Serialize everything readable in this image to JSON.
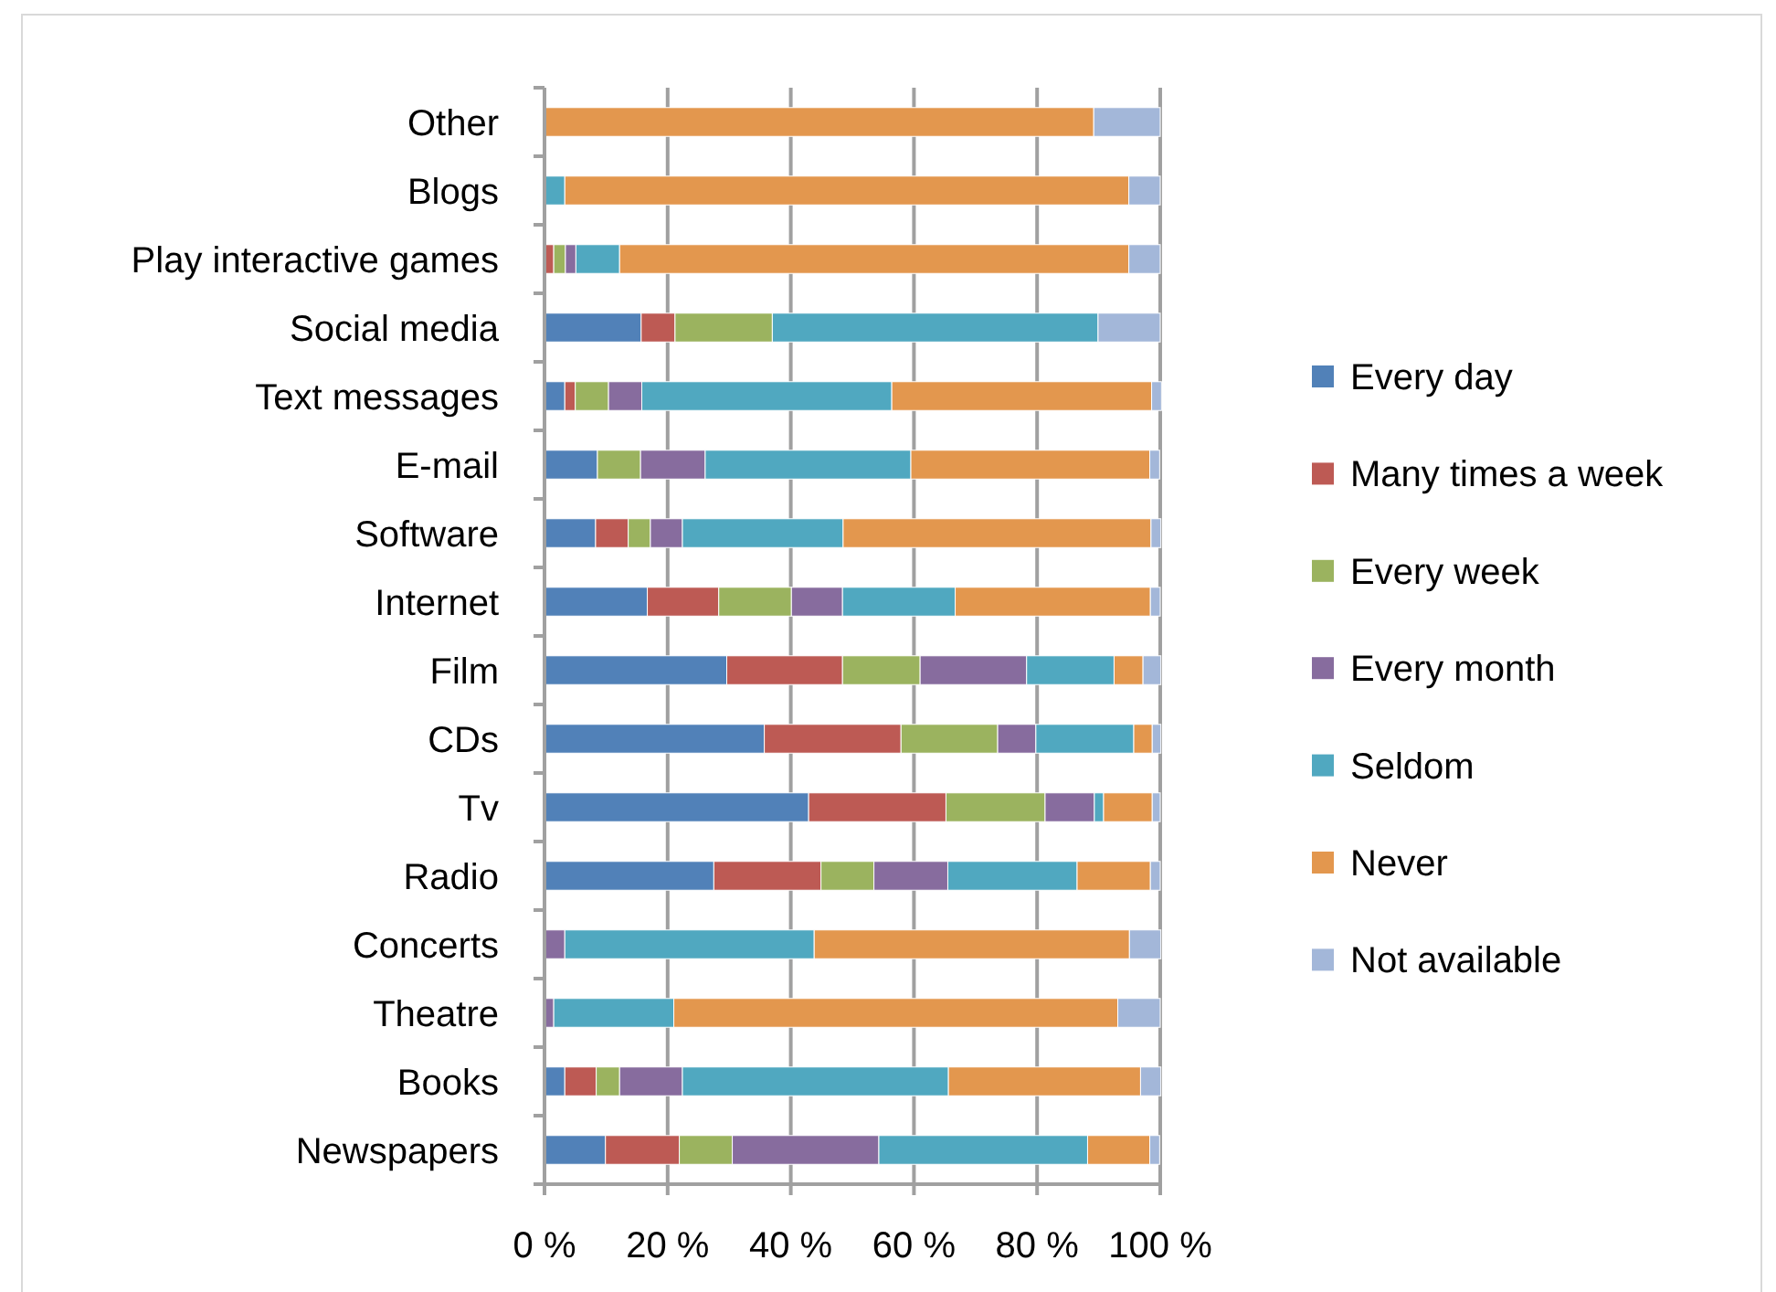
{
  "chart_data": {
    "type": "bar",
    "orientation": "horizontal",
    "stacked": true,
    "categories": [
      "Other",
      "Blogs",
      "Play interactive games",
      "Social media",
      "Text messages",
      "E-mail",
      "Software",
      "Internet",
      "Film",
      "CDs",
      "Tv",
      "Radio",
      "Concerts",
      "Theatre",
      "Books",
      "Newspapers"
    ],
    "series": [
      {
        "name": "Every day",
        "color": "#5181b8",
        "values": [
          0,
          0,
          0,
          15.7,
          3.3,
          8.6,
          8.3,
          16.7,
          29.6,
          35.7,
          42.9,
          27.5,
          0,
          0,
          3.3,
          9.9
        ]
      },
      {
        "name": "Many times a week",
        "color": "#bd5a54",
        "values": [
          0,
          0,
          1.5,
          5.5,
          1.7,
          0,
          5.3,
          11.6,
          18.8,
          22.2,
          22.3,
          17.4,
          0,
          0,
          5.1,
          12
        ]
      },
      {
        "name": "Every week",
        "color": "#9bb35f",
        "values": [
          0,
          0,
          1.9,
          15.8,
          5.4,
          7,
          3.6,
          11.8,
          12.6,
          15.7,
          16.1,
          8.6,
          0,
          0,
          3.8,
          8.6
        ]
      },
      {
        "name": "Every month",
        "color": "#876c9e",
        "values": [
          0,
          0,
          1.7,
          0,
          5.4,
          10.5,
          5.2,
          8.3,
          17.3,
          6.2,
          8,
          12,
          3.3,
          1.5,
          10.2,
          23.8
        ]
      },
      {
        "name": "Seldom",
        "color": "#50a8c0",
        "values": [
          0,
          3.3,
          7.1,
          52.9,
          40.6,
          33.4,
          26.1,
          18.3,
          14.2,
          15.9,
          1.5,
          21,
          40.5,
          19.5,
          43.2,
          33.9
        ]
      },
      {
        "name": "Never",
        "color": "#e3974e",
        "values": [
          89.2,
          91.6,
          82.7,
          0,
          42.2,
          38.8,
          50,
          31.7,
          4.7,
          3,
          7.9,
          11.9,
          51.2,
          72.1,
          31.2,
          10.1
        ]
      },
      {
        "name": "Not available",
        "color": "#a3b7d9",
        "values": [
          10.8,
          5.1,
          5.1,
          10.1,
          1.6,
          1.6,
          1.6,
          1.6,
          2.9,
          1.4,
          1.3,
          1.6,
          5.1,
          6.9,
          3.3,
          1.6
        ]
      }
    ],
    "xlim": [
      0,
      100
    ],
    "xticks": [
      {
        "value": 0,
        "label": "0 %"
      },
      {
        "value": 20,
        "label": "20 %"
      },
      {
        "value": 40,
        "label": "40 %"
      },
      {
        "value": 60,
        "label": "60 %"
      },
      {
        "value": 80,
        "label": "80 %"
      },
      {
        "value": 100,
        "label": "100 %"
      }
    ],
    "grid": "x",
    "legend": "right"
  }
}
